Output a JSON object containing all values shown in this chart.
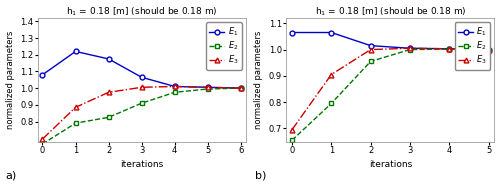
{
  "title": "h$_1$ = 0.18 [m] (should be 0.18 m)",
  "subplot_a": {
    "x": [
      0,
      1,
      2,
      3,
      4,
      5,
      6
    ],
    "E1": [
      1.08,
      1.22,
      1.175,
      1.065,
      1.01,
      1.005,
      1.0
    ],
    "E2": [
      0.665,
      0.79,
      0.825,
      0.91,
      0.975,
      0.995,
      1.0
    ],
    "E3": [
      0.695,
      0.885,
      0.975,
      1.005,
      1.01,
      1.005,
      1.0
    ],
    "ylim": [
      0.68,
      1.42
    ],
    "yticks": [
      0.8,
      0.9,
      1.0,
      1.1,
      1.2,
      1.3,
      1.4
    ],
    "ylabel": "normalized parameters",
    "xlabel": "iterations",
    "label": "a)"
  },
  "subplot_b": {
    "x": [
      0,
      1,
      2,
      3,
      4,
      5
    ],
    "E1": [
      1.065,
      1.065,
      1.015,
      1.005,
      1.003,
      1.0
    ],
    "E2": [
      0.655,
      0.795,
      0.955,
      1.0,
      1.002,
      1.0
    ],
    "E3": [
      0.695,
      0.905,
      1.0,
      1.005,
      1.003,
      1.0
    ],
    "ylim": [
      0.65,
      1.12
    ],
    "yticks": [
      0.7,
      0.8,
      0.9,
      1.0,
      1.1
    ],
    "ylabel": "normalized parameters",
    "xlabel": "iterations",
    "label": "b)"
  },
  "E1_color": "#0000cc",
  "E2_color": "#007700",
  "E3_color": "#cc0000",
  "bg_color": "#ffffff"
}
